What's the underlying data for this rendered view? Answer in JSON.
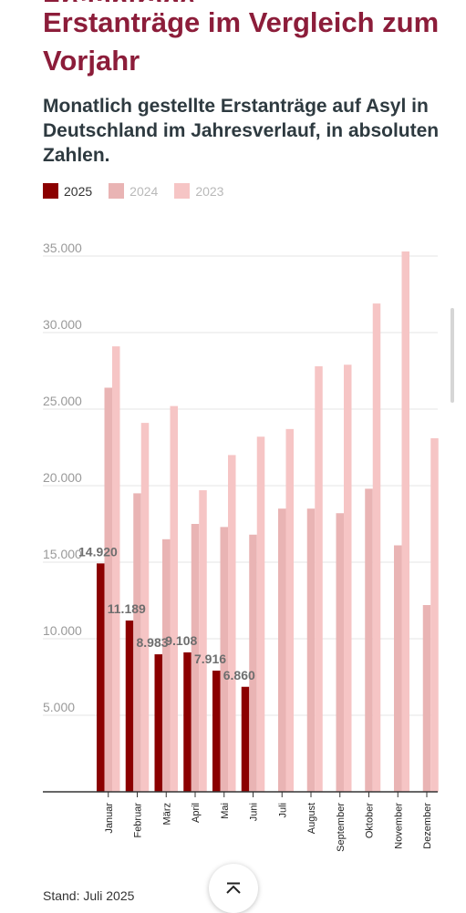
{
  "header": {
    "title": "Erstanträge im Vergleich zum Vorjahr",
    "subtitle": "Monatlich gestellte Erstanträge auf Asyl in Deutschland im Jahresverlauf, in absoluten Zahlen."
  },
  "legend": [
    {
      "label": "2025",
      "color": "#8b0000"
    },
    {
      "label": "2024",
      "color": "#e9b4b4"
    },
    {
      "label": "2023",
      "color": "#f6c5c5"
    }
  ],
  "footer": {
    "source": "Stand: Juli 2025"
  },
  "chart_data": {
    "type": "bar",
    "title": "Erstanträge im Vergleich zum Vorjahr",
    "subtitle": "Monatlich gestellte Erstanträge auf Asyl in Deutschland im Jahresverlauf, in absoluten Zahlen.",
    "categories": [
      "Januar",
      "Februar",
      "März",
      "April",
      "Mai",
      "Juni",
      "Juli",
      "August",
      "September",
      "Oktober",
      "November",
      "Dezember"
    ],
    "series": [
      {
        "name": "2025",
        "color": "#8b0000",
        "values": [
          14920,
          11189,
          8983,
          9108,
          7916,
          6860,
          null,
          null,
          null,
          null,
          null,
          null
        ],
        "labels": [
          "14.920",
          "11.189",
          "8.983",
          "9.108",
          "7.916",
          "6.860",
          "",
          "",
          "",
          "",
          "",
          ""
        ]
      },
      {
        "name": "2024",
        "color": "#e9b4b4",
        "values": [
          26400,
          19500,
          16500,
          17500,
          17300,
          16800,
          18500,
          18500,
          18200,
          19800,
          16100,
          12200
        ]
      },
      {
        "name": "2023",
        "color": "#f6c5c5",
        "values": [
          29100,
          24100,
          25200,
          19700,
          22000,
          23200,
          23700,
          27800,
          27900,
          31900,
          35300,
          23100
        ]
      }
    ],
    "yticks": [
      "35.000",
      "30.000",
      "25.000",
      "20.000",
      "15.000",
      "10.000",
      "5.000"
    ],
    "ytick_values": [
      35000,
      30000,
      25000,
      20000,
      15000,
      10000,
      5000
    ],
    "ylim": [
      0,
      35000
    ],
    "grid": true,
    "legend_position": "top-left"
  }
}
